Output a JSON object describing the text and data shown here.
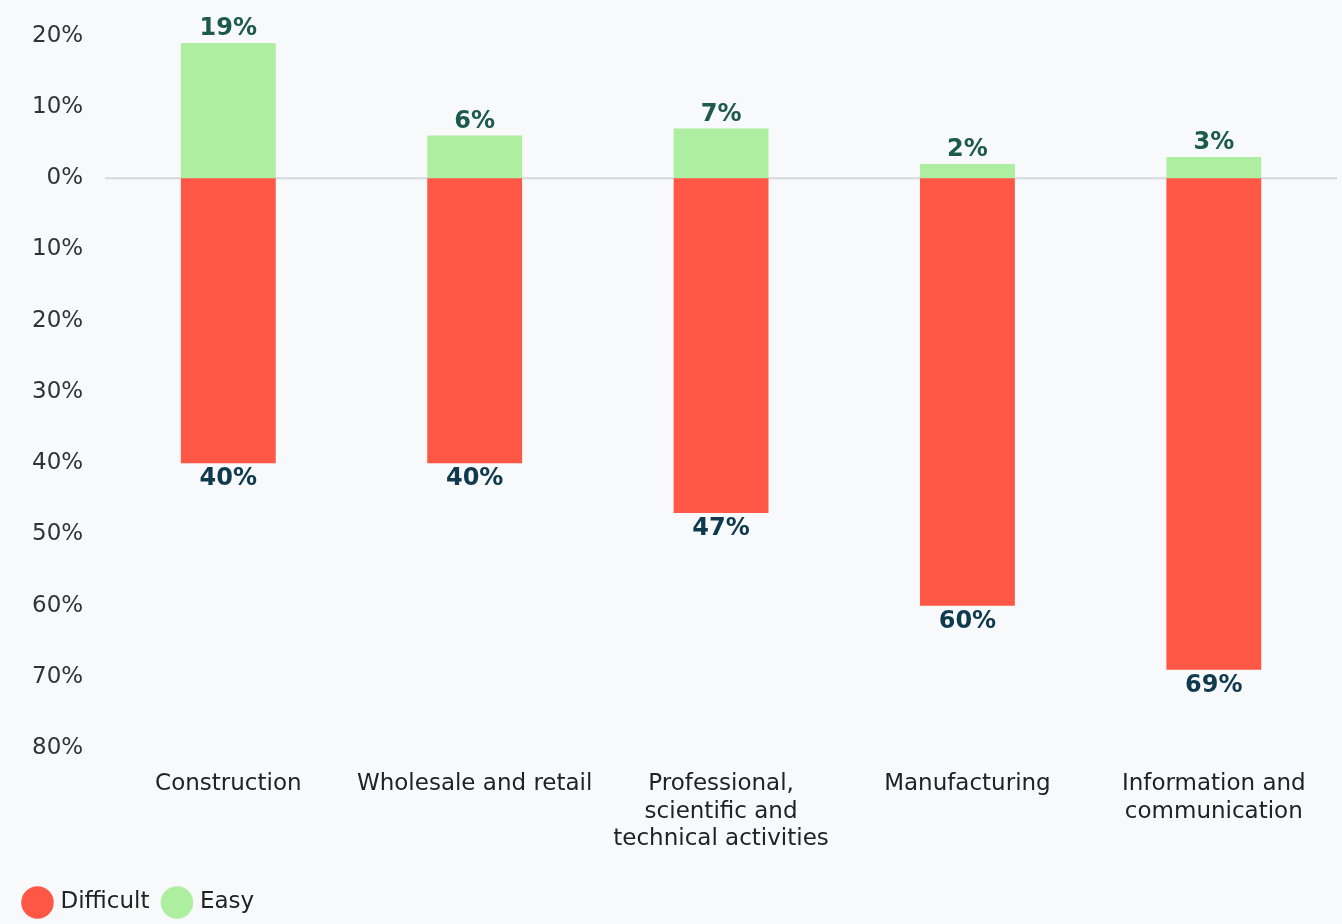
{
  "chart_data": {
    "type": "bar",
    "stacked": true,
    "categories": [
      "Construction",
      "Wholesale and retail",
      "Professional, scientific and technical activities",
      "Manufacturing",
      "Information and communication"
    ],
    "series": [
      {
        "name": "Difficult",
        "color": "#ff5745",
        "values": [
          -40,
          -40,
          -47,
          -60,
          -69
        ]
      },
      {
        "name": "Easy",
        "color": "#aeeea0",
        "values": [
          19,
          6,
          7,
          2,
          3
        ],
        "value_labels": [
          "19%",
          "6%",
          "7%",
          "2%",
          "3%"
        ]
      }
    ],
    "ylim": [
      -80,
      20
    ],
    "yticks": [
      {
        "value": -80,
        "label": "80%"
      },
      {
        "value": -70,
        "label": "70%"
      },
      {
        "value": -60,
        "label": "60%"
      },
      {
        "value": -50,
        "label": "50%"
      },
      {
        "value": -40,
        "label": "40%"
      },
      {
        "value": -30,
        "label": "30%"
      },
      {
        "value": -20,
        "label": "20%"
      },
      {
        "value": -10,
        "label": "10%"
      },
      {
        "value": 0,
        "label": "0%"
      },
      {
        "value": 10,
        "label": "10%"
      },
      {
        "value": 20,
        "label": "20%"
      }
    ],
    "grid": false,
    "ref_lines": [
      {
        "axis": "y",
        "value": 0,
        "color": "#d5d9de"
      }
    ],
    "annotations": [
      {
        "text": "40%",
        "x": "Construction",
        "y": -40
      },
      {
        "text": "40%",
        "x": "Wholesale and retail",
        "y": -40
      },
      {
        "text": "47%",
        "x": "Professional, scientific and technical activities",
        "y": -47
      },
      {
        "text": "60%",
        "x": "Manufacturing",
        "y": -60
      },
      {
        "text": "69%",
        "x": "Information and communication",
        "y": -69
      }
    ],
    "legend": "bottom left"
  }
}
